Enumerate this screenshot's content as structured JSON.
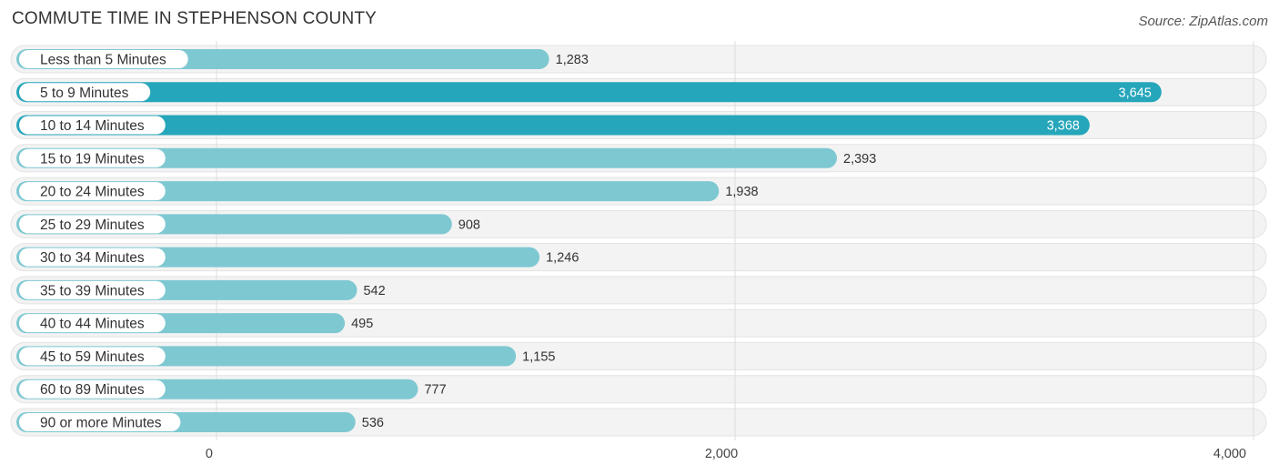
{
  "title": "COMMUTE TIME IN STEPHENSON COUNTY",
  "source": "Source: ZipAtlas.com",
  "colors": {
    "bar_light": "#7ec8d2",
    "bar_dark": "#26a6ba",
    "track": "#eeeeee",
    "grid": "#dddddd"
  },
  "chart_data": {
    "type": "bar",
    "orientation": "horizontal",
    "title": "COMMUTE TIME IN STEPHENSON COUNTY",
    "categories": [
      "Less than 5 Minutes",
      "5 to 9 Minutes",
      "10 to 14 Minutes",
      "15 to 19 Minutes",
      "20 to 24 Minutes",
      "25 to 29 Minutes",
      "30 to 34 Minutes",
      "35 to 39 Minutes",
      "40 to 44 Minutes",
      "45 to 59 Minutes",
      "60 to 89 Minutes",
      "90 or more Minutes"
    ],
    "values": [
      1283,
      3645,
      3368,
      2393,
      1938,
      908,
      1246,
      542,
      495,
      1155,
      777,
      536
    ],
    "value_labels": [
      "1,283",
      "3,645",
      "3,368",
      "2,393",
      "1,938",
      "908",
      "1,246",
      "542",
      "495",
      "1,155",
      "777",
      "536"
    ],
    "xlim": [
      0,
      4000
    ],
    "xticks": [
      0,
      2000,
      4000
    ],
    "xtick_labels": [
      "0",
      "2,000",
      "4,000"
    ],
    "grid": true,
    "xlabel": "",
    "ylabel": ""
  }
}
